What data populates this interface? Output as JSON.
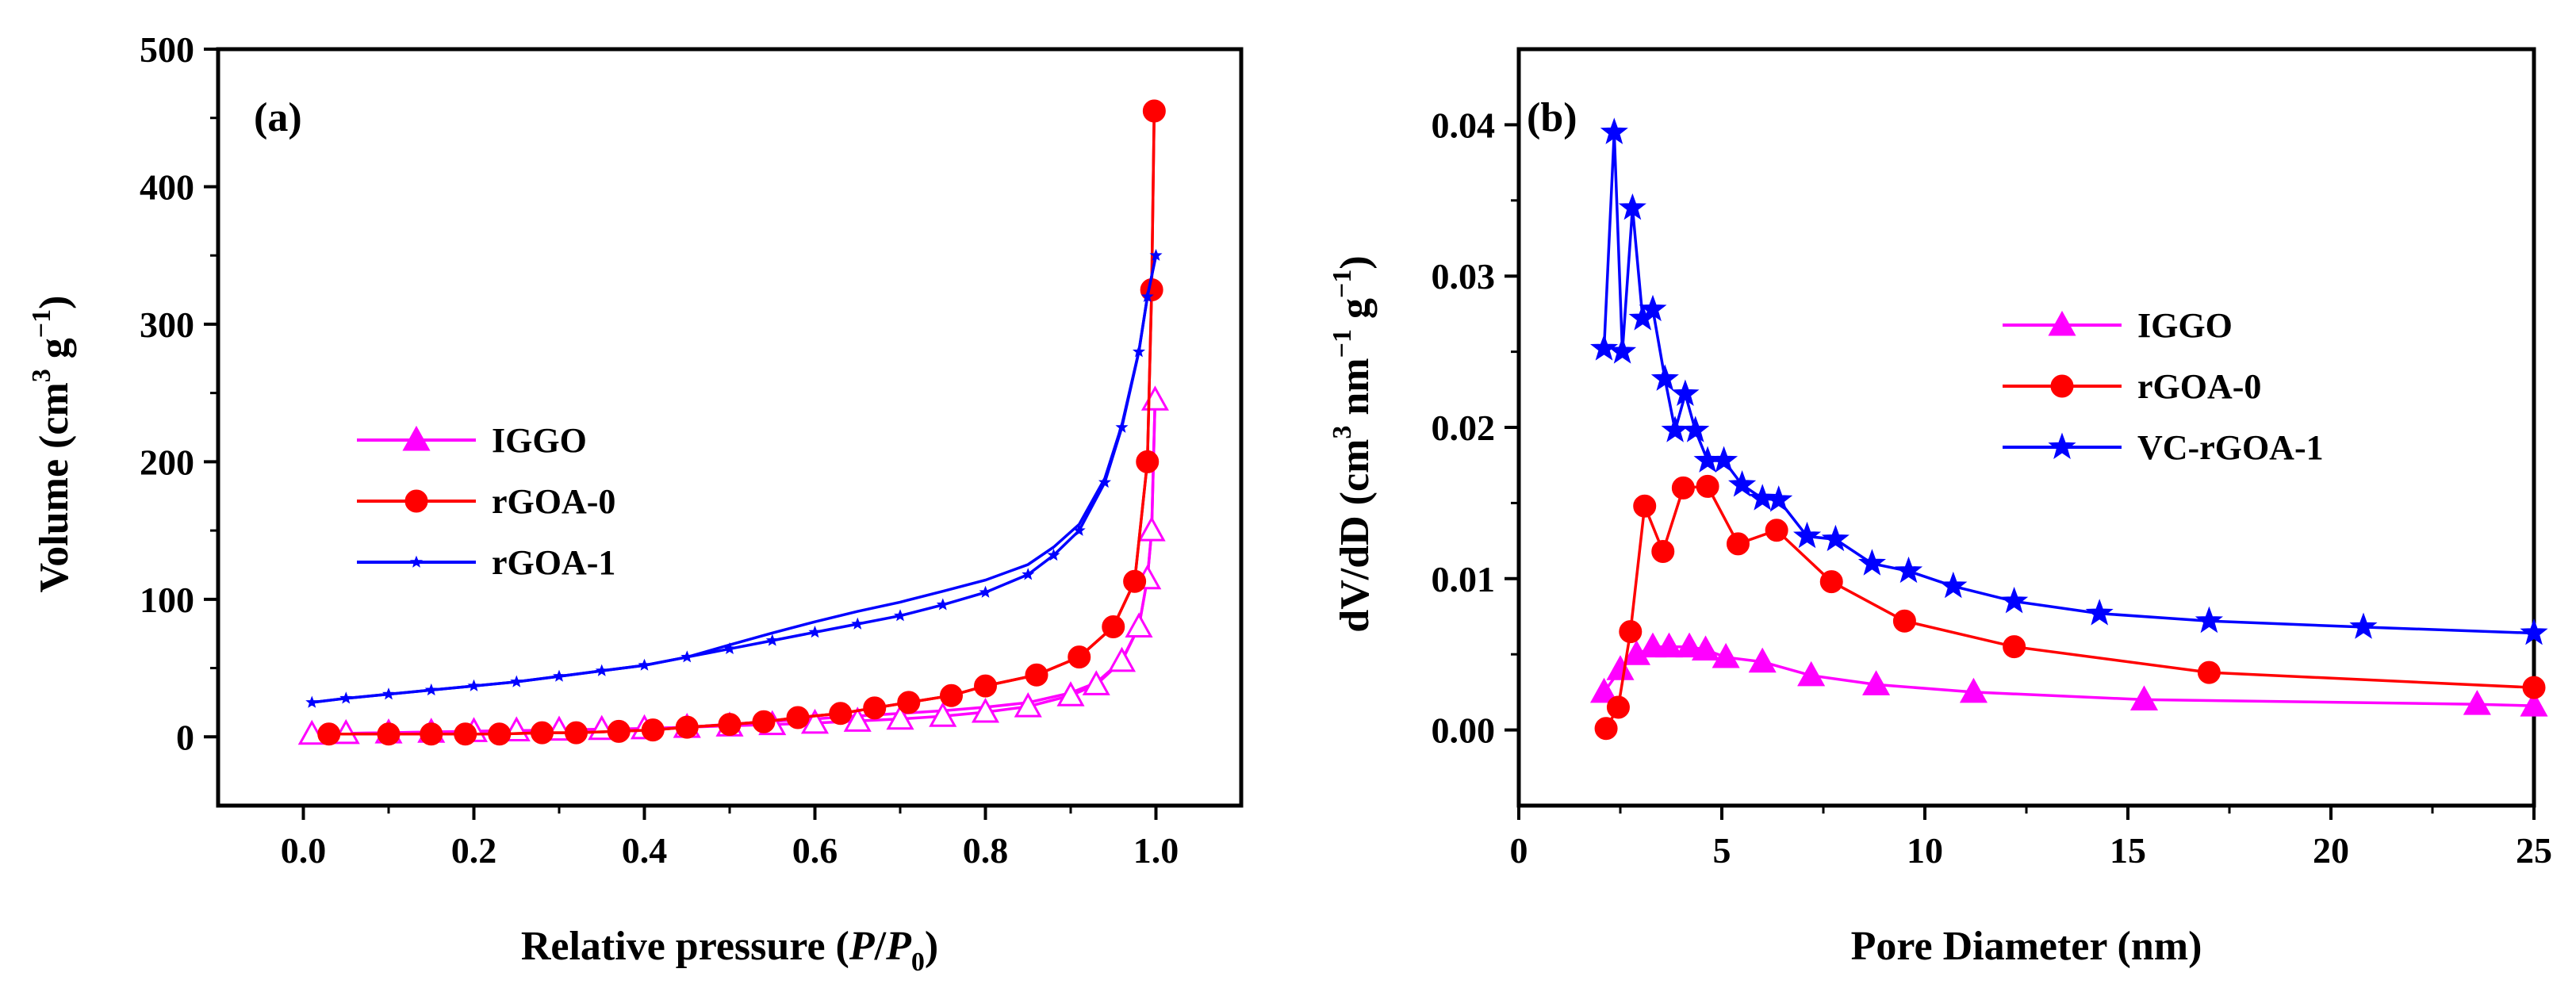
{
  "chart_data": [
    {
      "type": "line",
      "panel_label": "(a)",
      "xlabel_parts": [
        "Relative pressure (",
        "P",
        "/",
        "P",
        "0",
        ")"
      ],
      "ylabel_parts": [
        "Volume (cm",
        "3",
        " g",
        "−1",
        ")"
      ],
      "xlim": [
        -0.1,
        1.1
      ],
      "ylim": [
        -50,
        500
      ],
      "xticks": [
        "0.0",
        "0.2",
        "0.4",
        "0.6",
        "0.8",
        "1.0"
      ],
      "xtick_values": [
        0.0,
        0.2,
        0.4,
        0.6,
        0.8,
        1.0
      ],
      "yticks": [
        "0",
        "100",
        "200",
        "300",
        "400",
        "500"
      ],
      "ytick_values": [
        0,
        100,
        200,
        300,
        400,
        500
      ],
      "legend_position": "center-left",
      "series": [
        {
          "name": "IGGO",
          "color": "#ff00ff",
          "marker": "triangle",
          "x": [
            0.01,
            0.05,
            0.1,
            0.15,
            0.2,
            0.25,
            0.3,
            0.35,
            0.4,
            0.45,
            0.5,
            0.55,
            0.6,
            0.65,
            0.7,
            0.75,
            0.8,
            0.85,
            0.9,
            0.93,
            0.96,
            0.98,
            0.99,
            0.995,
            0.999
          ],
          "y": [
            2,
            2.5,
            3,
            3.5,
            4,
            4.5,
            5,
            5.5,
            6,
            7,
            8,
            9,
            10,
            11.5,
            13,
            15,
            18,
            22,
            30,
            38,
            55,
            80,
            115,
            150,
            245
          ]
        },
        {
          "name": "rGOA-0",
          "color": "#ff0000",
          "marker": "circle",
          "x": [
            0.03,
            0.1,
            0.15,
            0.19,
            0.23,
            0.28,
            0.32,
            0.37,
            0.41,
            0.45,
            0.5,
            0.54,
            0.58,
            0.63,
            0.67,
            0.71,
            0.76,
            0.8,
            0.86,
            0.91,
            0.95,
            0.975,
            0.99,
            0.995,
            0.998
          ],
          "y": [
            2,
            2,
            2,
            2,
            2,
            3,
            3,
            4,
            5,
            7,
            9,
            11,
            14,
            17,
            21,
            25,
            30,
            37,
            45,
            58,
            80,
            113,
            200,
            325,
            455
          ]
        },
        {
          "name": "rGOA-1",
          "color": "#0000ff",
          "marker": "star-small",
          "x": [
            0.01,
            0.05,
            0.1,
            0.15,
            0.2,
            0.25,
            0.3,
            0.35,
            0.4,
            0.45,
            0.5,
            0.55,
            0.6,
            0.65,
            0.7,
            0.75,
            0.8,
            0.85,
            0.88,
            0.91,
            0.94,
            0.96,
            0.98,
            0.99,
            1.0
          ],
          "y": [
            25,
            28,
            31,
            34,
            37,
            40,
            44,
            48,
            52,
            58,
            64,
            70,
            76,
            82,
            88,
            96,
            105,
            118,
            132,
            150,
            185,
            225,
            280,
            320,
            350
          ]
        }
      ]
    },
    {
      "type": "line",
      "panel_label": "(b)",
      "xlabel_parts": [
        "Pore Diameter (nm)"
      ],
      "ylabel_parts": [
        "dV/dD (cm",
        "3",
        " nm",
        "−1",
        " g",
        "−1",
        ")"
      ],
      "xlim": [
        0,
        25
      ],
      "ylim": [
        -0.005,
        0.045
      ],
      "xticks": [
        "0",
        "5",
        "10",
        "15",
        "20",
        "25"
      ],
      "xtick_values": [
        0,
        5,
        10,
        15,
        20,
        25
      ],
      "yticks": [
        "0.00",
        "0.01",
        "0.02",
        "0.03",
        "0.04"
      ],
      "ytick_values": [
        0.0,
        0.01,
        0.02,
        0.03,
        0.04
      ],
      "legend_position": "center-right",
      "series": [
        {
          "name": "IGGO",
          "color": "#ff00ff",
          "marker": "triangle",
          "x": [
            2.1,
            2.5,
            2.9,
            3.3,
            3.7,
            4.2,
            4.6,
            5.1,
            6.0,
            7.2,
            8.8,
            11.2,
            15.4,
            23.6,
            25
          ],
          "y": [
            0.0025,
            0.004,
            0.005,
            0.0055,
            0.0055,
            0.0055,
            0.0053,
            0.0048,
            0.0045,
            0.0036,
            0.003,
            0.0025,
            0.002,
            0.0017,
            0.0016
          ]
        },
        {
          "name": "rGOA-0",
          "color": "#ff0000",
          "marker": "circle",
          "x": [
            2.15,
            2.45,
            2.75,
            3.1,
            3.55,
            4.05,
            4.65,
            5.4,
            6.35,
            7.7,
            9.5,
            12.2,
            17.0,
            25
          ],
          "y": [
            0.0001,
            0.0015,
            0.0065,
            0.0148,
            0.0118,
            0.016,
            0.0161,
            0.0123,
            0.0132,
            0.0098,
            0.0072,
            0.0055,
            0.0038,
            0.0028
          ]
        },
        {
          "name": "VC-rGOA-1",
          "color": "#0000ff",
          "marker": "star",
          "x": [
            2.1,
            2.35,
            2.55,
            2.8,
            3.05,
            3.3,
            3.6,
            3.85,
            4.1,
            4.35,
            4.65,
            5.05,
            5.5,
            6.0,
            6.4,
            7.1,
            7.8,
            8.7,
            9.6,
            10.7,
            12.2,
            14.3,
            17.0,
            20.8,
            25
          ],
          "y": [
            0.0252,
            0.0395,
            0.025,
            0.0345,
            0.0272,
            0.0278,
            0.0232,
            0.0198,
            0.0222,
            0.0198,
            0.0178,
            0.0178,
            0.0162,
            0.0153,
            0.0152,
            0.0128,
            0.0126,
            0.011,
            0.0105,
            0.0095,
            0.0085,
            0.0077,
            0.0072,
            0.0068,
            0.0064
          ]
        }
      ]
    }
  ]
}
